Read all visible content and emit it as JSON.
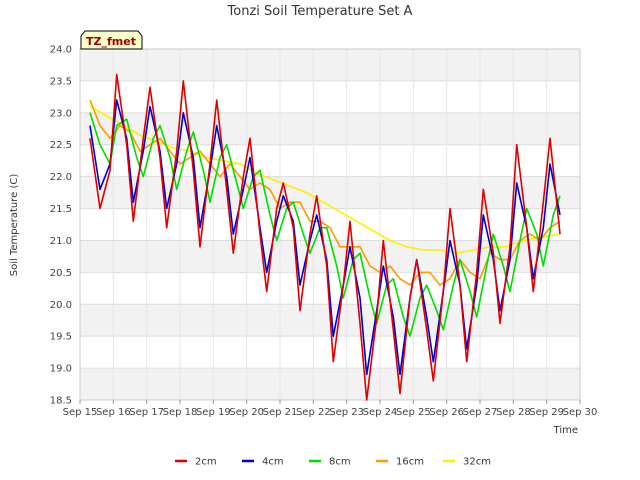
{
  "chart_data": {
    "type": "line",
    "title": "Tonzi Soil Temperature Set A",
    "xlabel": "Time",
    "ylabel": "Soil Temperature (C)",
    "ylim": [
      18.5,
      24.0
    ],
    "xlim": [
      15.0,
      30.0
    ],
    "yticks": [
      18.5,
      19.0,
      19.5,
      20.0,
      20.5,
      21.0,
      21.5,
      22.0,
      22.5,
      23.0,
      23.5,
      24.0
    ],
    "ytick_labels": [
      "18.5",
      "19.0",
      "19.5",
      "20.0",
      "20.5",
      "21.0",
      "21.5",
      "22.0",
      "22.5",
      "23.0",
      "23.5",
      "24.0"
    ],
    "xticks": [
      15,
      16,
      17,
      18,
      19,
      20,
      21,
      22,
      23,
      24,
      25,
      26,
      27,
      28,
      29,
      30
    ],
    "xtick_labels": [
      "Sep 15",
      "Sep 16",
      "Sep 17",
      "Sep 18",
      "Sep 19",
      "Sep 20",
      "Sep 21",
      "Sep 22",
      "Sep 23",
      "Sep 24",
      "Sep 25",
      "Sep 26",
      "Sep 27",
      "Sep 28",
      "Sep 29",
      "Sep 30"
    ],
    "grid": true,
    "legend_position": "bottom",
    "tag_label": "TZ_fmet",
    "series": [
      {
        "name": "2cm",
        "color": "#dd0000",
        "x": [
          15.3,
          15.6,
          15.9,
          16.1,
          16.4,
          16.6,
          16.9,
          17.1,
          17.4,
          17.6,
          17.9,
          18.1,
          18.4,
          18.6,
          18.9,
          19.1,
          19.4,
          19.6,
          19.9,
          20.1,
          20.4,
          20.6,
          20.9,
          21.1,
          21.4,
          21.6,
          21.9,
          22.1,
          22.4,
          22.6,
          22.9,
          23.1,
          23.4,
          23.6,
          23.9,
          24.1,
          24.4,
          24.6,
          24.9,
          25.1,
          25.4,
          25.6,
          25.9,
          26.1,
          26.4,
          26.6,
          26.9,
          27.1,
          27.4,
          27.6,
          27.9,
          28.1,
          28.4,
          28.6,
          28.9,
          29.1,
          29.4
        ],
        "y": [
          22.6,
          21.5,
          22.1,
          23.6,
          22.5,
          21.3,
          22.6,
          23.4,
          22.3,
          21.2,
          22.4,
          23.5,
          22.1,
          20.9,
          22.2,
          23.2,
          21.8,
          20.8,
          22.0,
          22.6,
          21.1,
          20.2,
          21.5,
          21.9,
          21.2,
          19.9,
          21.1,
          21.7,
          20.6,
          19.1,
          20.3,
          21.3,
          19.7,
          18.5,
          19.8,
          21.0,
          19.6,
          18.6,
          20.1,
          20.7,
          19.6,
          18.8,
          20.2,
          21.5,
          20.3,
          19.1,
          20.5,
          21.8,
          20.8,
          19.7,
          20.9,
          22.5,
          21.2,
          20.2,
          21.6,
          22.6,
          21.1
        ]
      },
      {
        "name": "4cm",
        "color": "#0000cc",
        "x": [
          15.3,
          15.6,
          15.9,
          16.1,
          16.4,
          16.6,
          16.9,
          17.1,
          17.4,
          17.6,
          17.9,
          18.1,
          18.4,
          18.6,
          18.9,
          19.1,
          19.4,
          19.6,
          19.9,
          20.1,
          20.4,
          20.6,
          20.9,
          21.1,
          21.4,
          21.6,
          21.9,
          22.1,
          22.4,
          22.6,
          22.9,
          23.1,
          23.4,
          23.6,
          23.9,
          24.1,
          24.4,
          24.6,
          24.9,
          25.1,
          25.4,
          25.6,
          25.9,
          26.1,
          26.4,
          26.6,
          26.9,
          27.1,
          27.4,
          27.6,
          27.9,
          28.1,
          28.4,
          28.6,
          28.9,
          29.1,
          29.4
        ],
        "y": [
          22.8,
          21.8,
          22.2,
          23.2,
          22.6,
          21.6,
          22.4,
          23.1,
          22.4,
          21.5,
          22.2,
          23.0,
          22.3,
          21.2,
          22.1,
          22.8,
          22.0,
          21.1,
          21.8,
          22.3,
          21.2,
          20.5,
          21.3,
          21.7,
          21.3,
          20.3,
          21.0,
          21.4,
          20.7,
          19.5,
          20.3,
          20.9,
          20.1,
          18.9,
          19.9,
          20.6,
          19.8,
          18.9,
          20.1,
          20.7,
          19.8,
          19.1,
          20.2,
          21.0,
          20.3,
          19.3,
          20.3,
          21.4,
          20.7,
          19.9,
          20.7,
          21.9,
          21.2,
          20.4,
          21.2,
          22.2,
          21.4
        ]
      },
      {
        "name": "8cm",
        "color": "#00dd00",
        "x": [
          15.3,
          15.6,
          15.9,
          16.1,
          16.4,
          16.7,
          16.9,
          17.2,
          17.4,
          17.7,
          17.9,
          18.2,
          18.4,
          18.7,
          18.9,
          19.2,
          19.4,
          19.7,
          19.9,
          20.2,
          20.4,
          20.7,
          20.9,
          21.2,
          21.4,
          21.7,
          21.9,
          22.2,
          22.4,
          22.7,
          22.9,
          23.2,
          23.4,
          23.7,
          23.9,
          24.2,
          24.4,
          24.7,
          24.9,
          25.2,
          25.4,
          25.7,
          25.9,
          26.2,
          26.4,
          26.7,
          26.9,
          27.2,
          27.4,
          27.7,
          27.9,
          28.2,
          28.4,
          28.7,
          28.9,
          29.2,
          29.4
        ],
        "y": [
          23.0,
          22.5,
          22.2,
          22.8,
          22.9,
          22.3,
          22.0,
          22.6,
          22.8,
          22.3,
          21.8,
          22.4,
          22.7,
          22.1,
          21.6,
          22.3,
          22.5,
          21.9,
          21.5,
          22.0,
          22.1,
          21.4,
          21.0,
          21.5,
          21.6,
          21.1,
          20.8,
          21.2,
          21.2,
          20.6,
          20.1,
          20.7,
          20.8,
          20.1,
          19.7,
          20.3,
          20.4,
          19.8,
          19.5,
          20.1,
          20.3,
          19.9,
          19.6,
          20.3,
          20.7,
          20.2,
          19.8,
          20.6,
          21.1,
          20.6,
          20.2,
          21.0,
          21.5,
          21.1,
          20.6,
          21.4,
          21.7
        ]
      },
      {
        "name": "16cm",
        "color": "#ff9900",
        "x": [
          15.3,
          15.6,
          15.9,
          16.2,
          16.5,
          16.8,
          17.1,
          17.4,
          17.7,
          18.0,
          18.3,
          18.6,
          18.9,
          19.2,
          19.5,
          19.8,
          20.1,
          20.4,
          20.7,
          21.0,
          21.3,
          21.6,
          21.9,
          22.2,
          22.5,
          22.8,
          23.1,
          23.4,
          23.7,
          24.0,
          24.3,
          24.6,
          24.9,
          25.2,
          25.5,
          25.8,
          26.1,
          26.4,
          26.7,
          27.0,
          27.3,
          27.6,
          27.9,
          28.2,
          28.5,
          28.8,
          29.1,
          29.4
        ],
        "y": [
          23.2,
          22.8,
          22.6,
          22.8,
          22.7,
          22.4,
          22.5,
          22.6,
          22.4,
          22.2,
          22.3,
          22.4,
          22.2,
          22.0,
          22.2,
          22.0,
          21.8,
          21.9,
          21.8,
          21.5,
          21.6,
          21.6,
          21.3,
          21.3,
          21.2,
          20.9,
          20.9,
          20.9,
          20.6,
          20.5,
          20.6,
          20.4,
          20.3,
          20.5,
          20.5,
          20.3,
          20.4,
          20.7,
          20.5,
          20.4,
          20.8,
          20.7,
          20.7,
          21.0,
          21.1,
          21.0,
          21.2,
          21.3
        ]
      },
      {
        "name": "32cm",
        "color": "#ffee00",
        "x": [
          15.3,
          15.8,
          16.3,
          16.8,
          17.3,
          17.8,
          18.3,
          18.8,
          19.3,
          19.8,
          20.3,
          20.8,
          21.3,
          21.8,
          22.3,
          22.8,
          23.3,
          23.8,
          24.3,
          24.8,
          25.3,
          25.8,
          26.3,
          26.8,
          27.3,
          27.8,
          28.3,
          28.8,
          29.4
        ],
        "y": [
          23.1,
          22.95,
          22.8,
          22.65,
          22.55,
          22.45,
          22.4,
          22.3,
          22.25,
          22.2,
          22.05,
          21.95,
          21.85,
          21.75,
          21.6,
          21.45,
          21.3,
          21.15,
          21.0,
          20.9,
          20.85,
          20.85,
          20.8,
          20.85,
          20.9,
          20.9,
          21.0,
          21.05,
          21.1
        ]
      }
    ]
  }
}
